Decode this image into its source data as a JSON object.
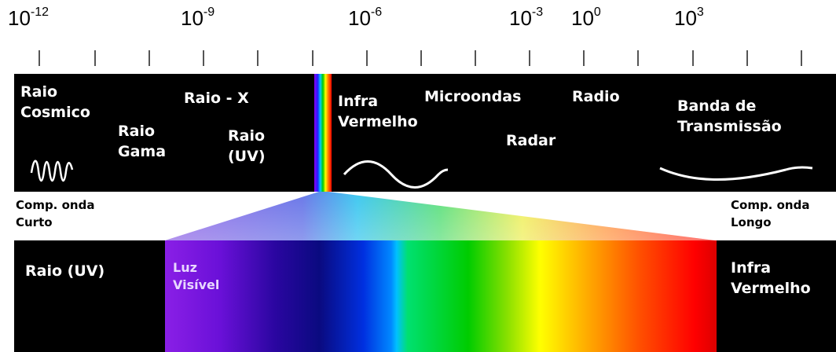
{
  "scale": {
    "exponents": [
      {
        "base": "10",
        "exp": "-12"
      },
      {
        "base": "10",
        "exp": "-9"
      },
      {
        "base": "10",
        "exp": "-6"
      },
      {
        "base": "10",
        "exp": "-3"
      },
      {
        "base": "10",
        "exp": "0"
      },
      {
        "base": "10",
        "exp": "3"
      }
    ]
  },
  "upper_band": {
    "raio_cosmico": [
      "Raio",
      "Cosmico"
    ],
    "raio_gama": [
      "Raio",
      "Gama"
    ],
    "raio_x": "Raio - X",
    "raio_uv": [
      "Raio",
      "(UV)"
    ],
    "infra_vermelho": [
      "Infra",
      "Vermelho"
    ],
    "microondas": "Microondas",
    "radar": "Radar",
    "radio": "Radio",
    "banda_transmissao": [
      "Banda de",
      "Transmissão"
    ]
  },
  "middle": {
    "short_wave": [
      "Comp. onda",
      "Curto"
    ],
    "long_wave": [
      "Comp. onda",
      "Longo"
    ]
  },
  "lower_band": {
    "raio_uv": "Raio (UV)",
    "luz_visivel": [
      "Luz",
      "Visível"
    ],
    "infra_vermelho": [
      "Infra",
      "Vermelho"
    ]
  },
  "colors": {
    "band": "#000000",
    "violet": "#8b00ff",
    "indigo": "#1a0d8c",
    "blue": "#0033ff",
    "cyan": "#00ccff",
    "green": "#00cc00",
    "yellow": "#ffff00",
    "orange": "#ff8000",
    "red": "#ff0000"
  }
}
